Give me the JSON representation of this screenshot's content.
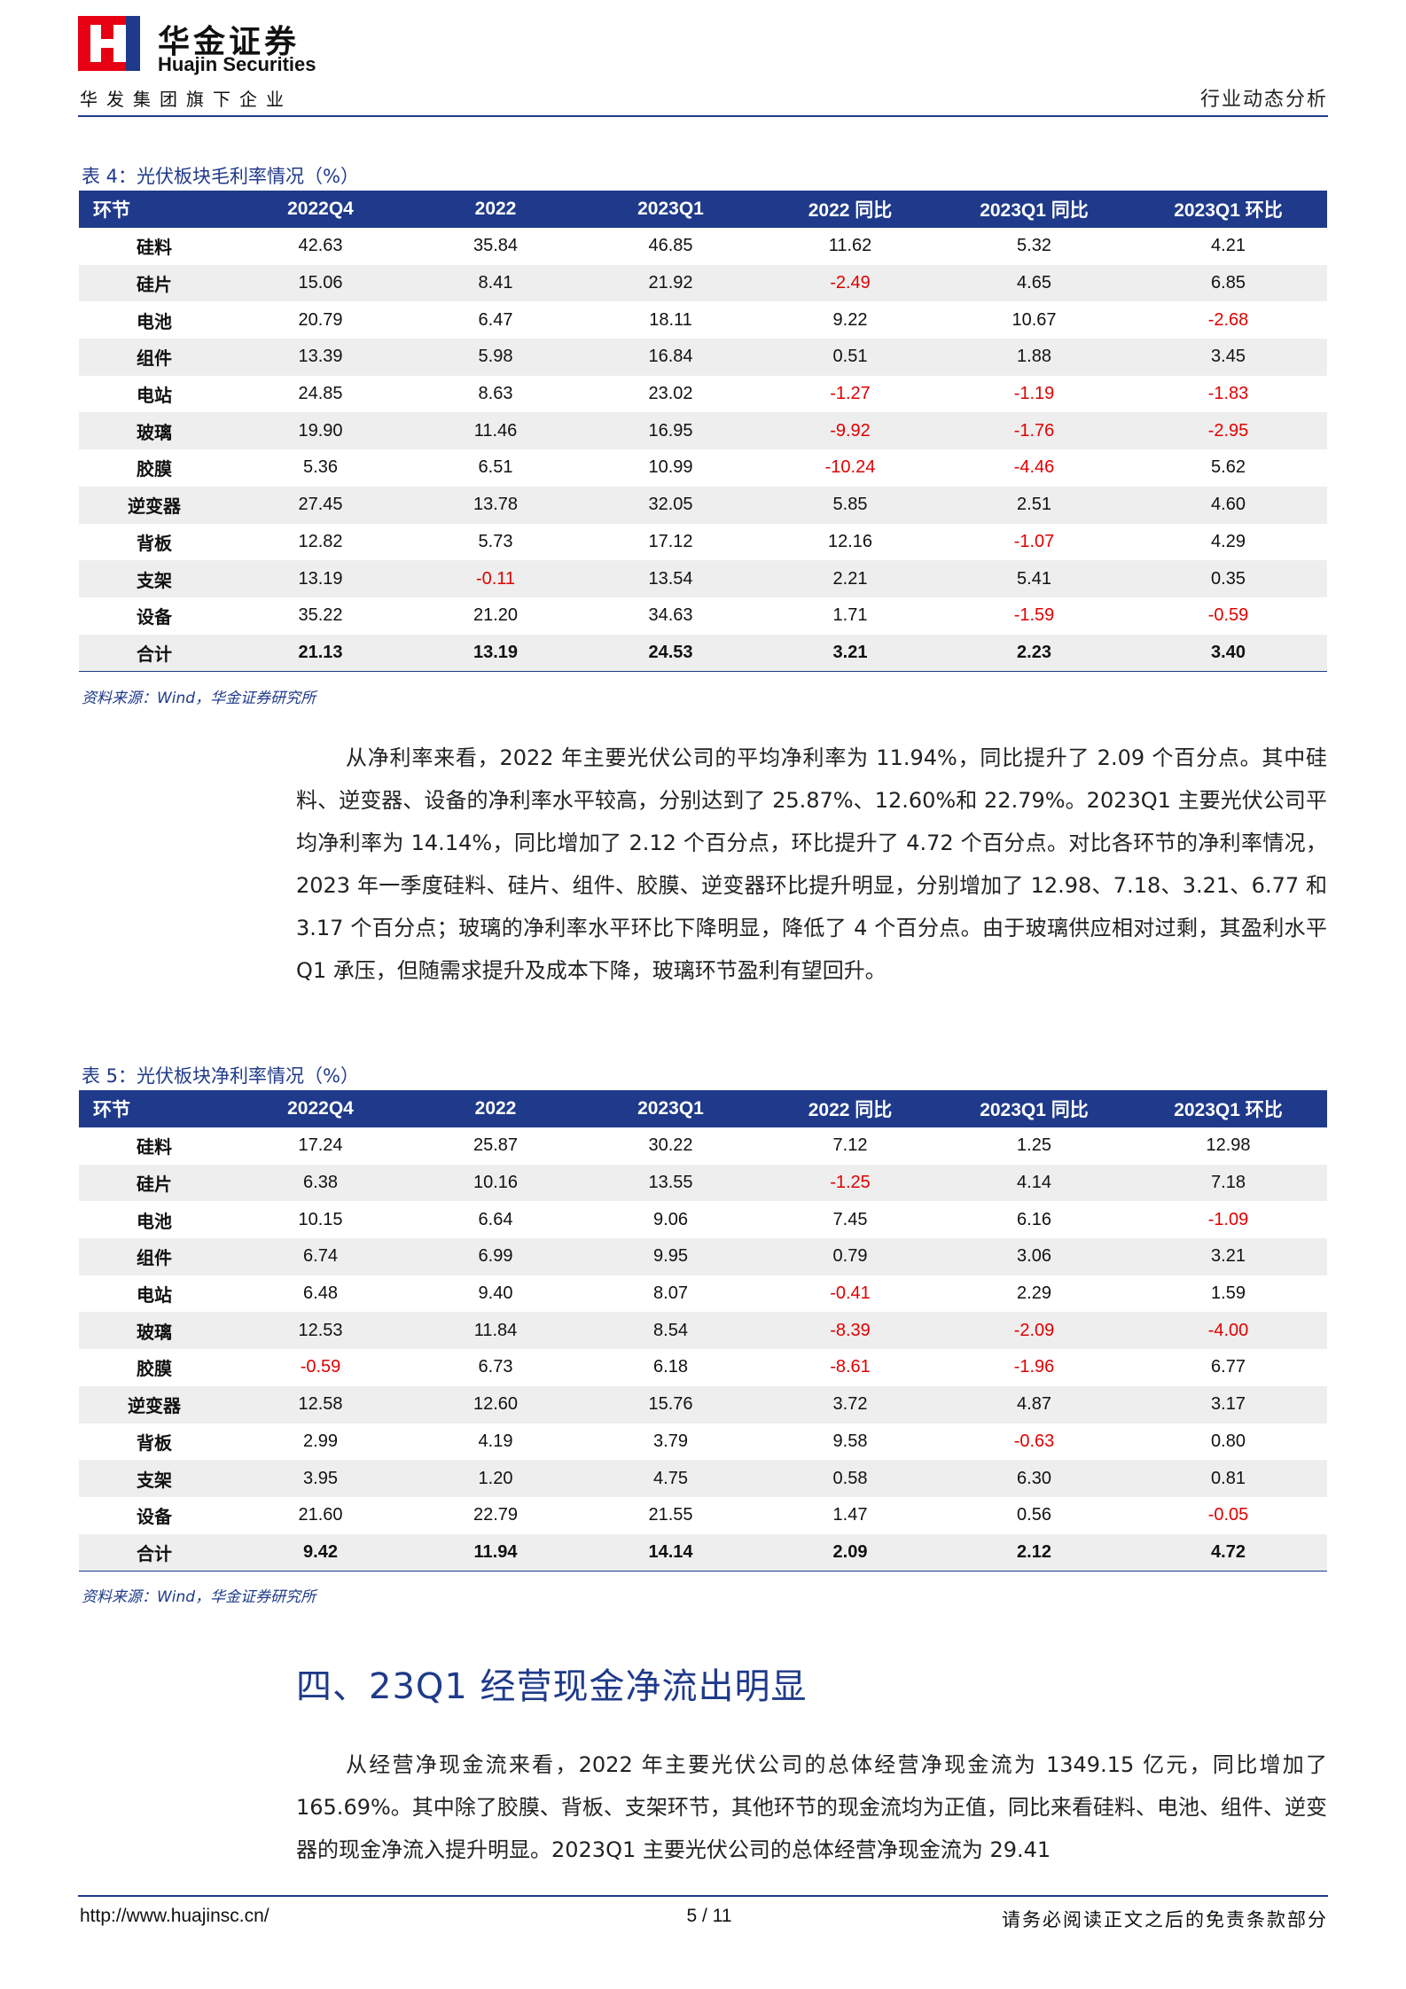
{
  "header": {
    "company_cn": "华金证券",
    "company_en": "Huajin Securities",
    "group_line": "华发集团旗下企业",
    "doc_type": "行业动态分析",
    "brand_red": "#e60012",
    "brand_blue": "#1f3a8a"
  },
  "table4": {
    "caption": "表 4：光伏板块毛利率情况（%）",
    "columns": [
      "环节",
      "2022Q4",
      "2022",
      "2023Q1",
      "2022 同比",
      "2023Q1 同比",
      "2023Q1 环比"
    ],
    "rows": [
      [
        "硅料",
        "42.63",
        "35.84",
        "46.85",
        "11.62",
        "5.32",
        "4.21"
      ],
      [
        "硅片",
        "15.06",
        "8.41",
        "21.92",
        "-2.49",
        "4.65",
        "6.85"
      ],
      [
        "电池",
        "20.79",
        "6.47",
        "18.11",
        "9.22",
        "10.67",
        "-2.68"
      ],
      [
        "组件",
        "13.39",
        "5.98",
        "16.84",
        "0.51",
        "1.88",
        "3.45"
      ],
      [
        "电站",
        "24.85",
        "8.63",
        "23.02",
        "-1.27",
        "-1.19",
        "-1.83"
      ],
      [
        "玻璃",
        "19.90",
        "11.46",
        "16.95",
        "-9.92",
        "-1.76",
        "-2.95"
      ],
      [
        "胶膜",
        "5.36",
        "6.51",
        "10.99",
        "-10.24",
        "-4.46",
        "5.62"
      ],
      [
        "逆变器",
        "27.45",
        "13.78",
        "32.05",
        "5.85",
        "2.51",
        "4.60"
      ],
      [
        "背板",
        "12.82",
        "5.73",
        "17.12",
        "12.16",
        "-1.07",
        "4.29"
      ],
      [
        "支架",
        "13.19",
        "-0.11",
        "13.54",
        "2.21",
        "5.41",
        "0.35"
      ],
      [
        "设备",
        "35.22",
        "21.20",
        "34.63",
        "1.71",
        "-1.59",
        "-0.59"
      ],
      [
        "合计",
        "21.13",
        "13.19",
        "24.53",
        "3.21",
        "2.23",
        "3.40"
      ]
    ],
    "source": "资料来源：Wind，华金证券研究所"
  },
  "paragraph1": "从净利率来看，2022 年主要光伏公司的平均净利率为 11.94%，同比提升了 2.09 个百分点。其中硅料、逆变器、设备的净利率水平较高，分别达到了 25.87%、12.60%和 22.79%。2023Q1 主要光伏公司平均净利率为 14.14%，同比增加了 2.12 个百分点，环比提升了 4.72 个百分点。对比各环节的净利率情况，2023 年一季度硅料、硅片、组件、胶膜、逆变器环比提升明显，分别增加了 12.98、7.18、3.21、6.77 和 3.17 个百分点；玻璃的净利率水平环比下降明显，降低了 4 个百分点。由于玻璃供应相对过剩，其盈利水平 Q1 承压，但随需求提升及成本下降，玻璃环节盈利有望回升。",
  "table5": {
    "caption": "表 5：光伏板块净利率情况（%）",
    "columns": [
      "环节",
      "2022Q4",
      "2022",
      "2023Q1",
      "2022 同比",
      "2023Q1 同比",
      "2023Q1 环比"
    ],
    "rows": [
      [
        "硅料",
        "17.24",
        "25.87",
        "30.22",
        "7.12",
        "1.25",
        "12.98"
      ],
      [
        "硅片",
        "6.38",
        "10.16",
        "13.55",
        "-1.25",
        "4.14",
        "7.18"
      ],
      [
        "电池",
        "10.15",
        "6.64",
        "9.06",
        "7.45",
        "6.16",
        "-1.09"
      ],
      [
        "组件",
        "6.74",
        "6.99",
        "9.95",
        "0.79",
        "3.06",
        "3.21"
      ],
      [
        "电站",
        "6.48",
        "9.40",
        "8.07",
        "-0.41",
        "2.29",
        "1.59"
      ],
      [
        "玻璃",
        "12.53",
        "11.84",
        "8.54",
        "-8.39",
        "-2.09",
        "-4.00"
      ],
      [
        "胶膜",
        "-0.59",
        "6.73",
        "6.18",
        "-8.61",
        "-1.96",
        "6.77"
      ],
      [
        "逆变器",
        "12.58",
        "12.60",
        "15.76",
        "3.72",
        "4.87",
        "3.17"
      ],
      [
        "背板",
        "2.99",
        "4.19",
        "3.79",
        "9.58",
        "-0.63",
        "0.80"
      ],
      [
        "支架",
        "3.95",
        "1.20",
        "4.75",
        "0.58",
        "6.30",
        "0.81"
      ],
      [
        "设备",
        "21.60",
        "22.79",
        "21.55",
        "1.47",
        "0.56",
        "-0.05"
      ],
      [
        "合计",
        "9.42",
        "11.94",
        "14.14",
        "2.09",
        "2.12",
        "4.72"
      ]
    ],
    "source": "资料来源：Wind，华金证券研究所"
  },
  "section_title": "四、23Q1 经营现金净流出明显",
  "paragraph2": "从经营净现金流来看，2022 年主要光伏公司的总体经营净现金流为 1349.15 亿元，同比增加了 165.69%。其中除了胶膜、背板、支架环节，其他环节的现金流均为正值，同比来看硅料、电池、组件、逆变器的现金净流入提升明显。2023Q1 主要光伏公司的总体经营净现金流为 29.41",
  "footer": {
    "url": "http://www.huajinsc.cn/",
    "page": "5 / 11",
    "note": "请务必阅读正文之后的免责条款部分"
  }
}
